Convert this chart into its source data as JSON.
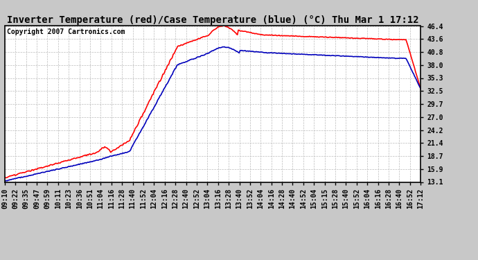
{
  "title": "Inverter Temperature (red)/Case Temperature (blue) (°C) Thu Mar 1 17:12",
  "copyright": "Copyright 2007 Cartronics.com",
  "background_color": "#c8c8c8",
  "plot_bg_color": "#ffffff",
  "yticks": [
    13.1,
    15.9,
    18.7,
    21.4,
    24.2,
    27.0,
    29.7,
    32.5,
    35.3,
    38.0,
    40.8,
    43.6,
    46.4
  ],
  "ylim": [
    13.1,
    46.4
  ],
  "red_color": "#ff0000",
  "blue_color": "#0000bb",
  "xtick_labels": [
    "09:10",
    "09:22",
    "09:35",
    "09:47",
    "09:59",
    "10:11",
    "10:23",
    "10:36",
    "10:51",
    "11:04",
    "11:16",
    "11:28",
    "11:40",
    "11:52",
    "12:04",
    "12:16",
    "12:28",
    "12:40",
    "12:52",
    "13:04",
    "13:16",
    "13:28",
    "13:40",
    "13:52",
    "14:04",
    "14:16",
    "14:28",
    "14:40",
    "14:52",
    "15:04",
    "15:15",
    "15:28",
    "15:40",
    "15:52",
    "16:04",
    "16:16",
    "16:28",
    "16:40",
    "16:52",
    "17:12"
  ],
  "title_fontsize": 10,
  "copyright_fontsize": 7,
  "tick_fontsize": 7,
  "linewidth": 1.2,
  "grid_color": "#bbbbbb",
  "grid_style": "--",
  "grid_lw": 0.5
}
